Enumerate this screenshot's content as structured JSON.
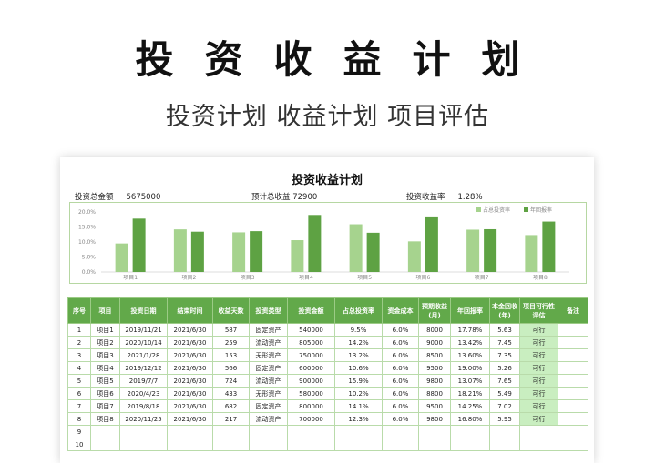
{
  "hero": {
    "title": "投资收益计划",
    "subtitle": "投资计划 收益计划 项目评估"
  },
  "sheet": {
    "title": "投资收益计划",
    "summary": {
      "total_label": "投资总金额",
      "total_value": "5675000",
      "expected_label": "预计总收益",
      "expected_value": "72900",
      "rate_label": "投资收益率",
      "rate_value": "1.28%"
    }
  },
  "chart_data": {
    "type": "bar",
    "categories": [
      "项目1",
      "项目2",
      "项目3",
      "项目4",
      "项目5",
      "项目6",
      "项目7",
      "项目8"
    ],
    "series": [
      {
        "name": "占总投资率",
        "values": [
          9.5,
          14.2,
          13.2,
          10.6,
          15.9,
          10.2,
          14.1,
          12.3
        ],
        "color": "#a6d38e"
      },
      {
        "name": "年回报率",
        "values": [
          17.78,
          13.42,
          13.6,
          19.0,
          13.07,
          18.21,
          14.25,
          16.8
        ],
        "color": "#5ea243"
      }
    ],
    "y_ticks": [
      "0.0%",
      "5.0%",
      "10.0%",
      "15.0%",
      "20.0%"
    ],
    "ylim": [
      0,
      20
    ],
    "legend": "top-right",
    "grid": false
  },
  "table": {
    "headers": [
      "序号",
      "项目",
      "投资日期",
      "结束时间",
      "收益天数",
      "投资类型",
      "投资金额",
      "占总投资率",
      "资金成本",
      "预期收益(月)",
      "年回报率",
      "本金回收(年)",
      "项目可行性评估",
      "备注"
    ],
    "rows": [
      [
        "1",
        "项目1",
        "2019/11/21",
        "2021/6/30",
        "587",
        "固定资产",
        "540000",
        "9.5%",
        "6.0%",
        "8000",
        "17.78%",
        "5.63",
        "可行",
        ""
      ],
      [
        "2",
        "项目2",
        "2020/10/14",
        "2021/6/30",
        "259",
        "流动资产",
        "805000",
        "14.2%",
        "6.0%",
        "9000",
        "13.42%",
        "7.45",
        "可行",
        ""
      ],
      [
        "3",
        "项目3",
        "2021/1/28",
        "2021/6/30",
        "153",
        "无形资产",
        "750000",
        "13.2%",
        "6.0%",
        "8500",
        "13.60%",
        "7.35",
        "可行",
        ""
      ],
      [
        "4",
        "项目4",
        "2019/12/12",
        "2021/6/30",
        "566",
        "固定资产",
        "600000",
        "10.6%",
        "6.0%",
        "9500",
        "19.00%",
        "5.26",
        "可行",
        ""
      ],
      [
        "5",
        "项目5",
        "2019/7/7",
        "2021/6/30",
        "724",
        "流动资产",
        "900000",
        "15.9%",
        "6.0%",
        "9800",
        "13.07%",
        "7.65",
        "可行",
        ""
      ],
      [
        "6",
        "项目6",
        "2020/4/23",
        "2021/6/30",
        "433",
        "无形资产",
        "580000",
        "10.2%",
        "6.0%",
        "8800",
        "18.21%",
        "5.49",
        "可行",
        ""
      ],
      [
        "7",
        "项目7",
        "2019/8/18",
        "2021/6/30",
        "682",
        "固定资产",
        "800000",
        "14.1%",
        "6.0%",
        "9500",
        "14.25%",
        "7.02",
        "可行",
        ""
      ],
      [
        "8",
        "项目8",
        "2020/11/25",
        "2021/6/30",
        "217",
        "流动资产",
        "700000",
        "12.3%",
        "6.0%",
        "9800",
        "16.80%",
        "5.95",
        "可行",
        ""
      ],
      [
        "9",
        "",
        "",
        "",
        "",
        "",
        "",
        "",
        "",
        "",
        "",
        "",
        "",
        ""
      ],
      [
        "10",
        "",
        "",
        "",
        "",
        "",
        "",
        "",
        "",
        "",
        "",
        "",
        "",
        ""
      ]
    ]
  }
}
